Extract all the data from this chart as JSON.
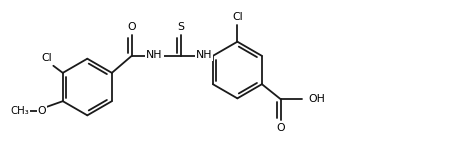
{
  "background_color": "#ffffff",
  "line_color": "#1a1a1a",
  "text_color": "#000000",
  "line_width": 1.3,
  "font_size": 7.8,
  "fig_width": 4.72,
  "fig_height": 1.58,
  "dpi": 100,
  "xlim": [
    0,
    10.0
  ],
  "ylim": [
    0,
    3.34
  ]
}
